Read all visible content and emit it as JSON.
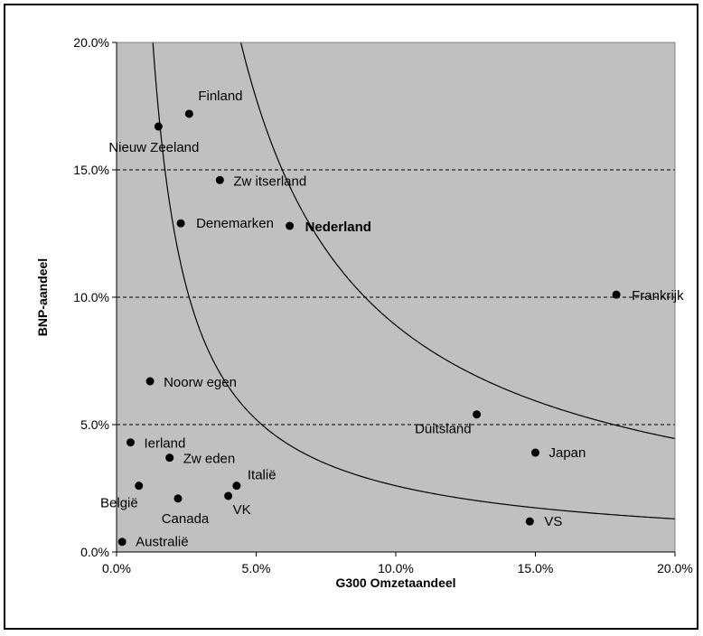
{
  "chart_data": {
    "type": "scatter",
    "title": "",
    "xlabel": "G300 Omzetaandeel",
    "ylabel": "BNP-aandeel",
    "xlim": [
      0,
      0.2
    ],
    "ylim": [
      0,
      0.2
    ],
    "x_ticks": [
      "0.0%",
      "5.0%",
      "10.0%",
      "15.0%",
      "20.0%"
    ],
    "y_ticks": [
      "0.0%",
      "5.0%",
      "10.0%",
      "15.0%",
      "20.0%"
    ],
    "grid": "horizontal dashed",
    "background": "#c0c0c0",
    "points": [
      {
        "label": "Finland",
        "x": 0.026,
        "y": 0.172
      },
      {
        "label": "Nieuw  Zeeland",
        "x": 0.015,
        "y": 0.167
      },
      {
        "label": "Zw itserland",
        "x": 0.037,
        "y": 0.146
      },
      {
        "label": "Denemarken",
        "x": 0.023,
        "y": 0.129
      },
      {
        "label": "Nederland",
        "x": 0.062,
        "y": 0.128,
        "bold": true
      },
      {
        "label": "Frankrijk",
        "x": 0.179,
        "y": 0.101
      },
      {
        "label": "Noorw egen",
        "x": 0.012,
        "y": 0.067
      },
      {
        "label": "Duitsland",
        "x": 0.129,
        "y": 0.054
      },
      {
        "label": "Ierland",
        "x": 0.005,
        "y": 0.043
      },
      {
        "label": "Zw eden",
        "x": 0.019,
        "y": 0.037
      },
      {
        "label": "Japan",
        "x": 0.15,
        "y": 0.039
      },
      {
        "label": "Italië",
        "x": 0.043,
        "y": 0.026
      },
      {
        "label": "België",
        "x": 0.008,
        "y": 0.026
      },
      {
        "label": "Canada",
        "x": 0.022,
        "y": 0.021
      },
      {
        "label": "VK",
        "x": 0.04,
        "y": 0.022
      },
      {
        "label": "VS",
        "x": 0.148,
        "y": 0.012
      },
      {
        "label": "Australië",
        "x": 0.002,
        "y": 0.004
      }
    ],
    "curves": [
      {
        "type": "hyperbola",
        "k": 0.0026
      },
      {
        "type": "hyperbola",
        "k": 0.0089
      }
    ]
  }
}
